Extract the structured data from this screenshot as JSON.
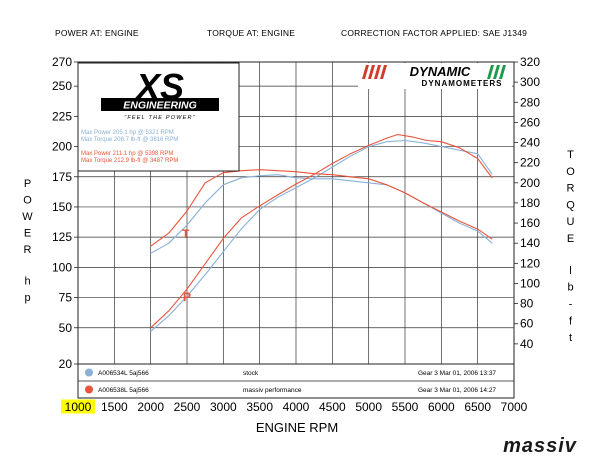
{
  "header": {
    "power_at": "POWER AT: ENGINE",
    "torque_at": "TORQUE AT: ENGINE",
    "correction": "CORRECTION FACTOR APPLIED: SAE J1349"
  },
  "logo_xs": {
    "xs": "XS",
    "engineering": "ENGINEERING",
    "tagline": "\"FEEL THE POWER\""
  },
  "logo_dynamic": {
    "name": "DYNAMIC",
    "sub": "DYNAMOMETERS"
  },
  "watermark": "massiv",
  "colors": {
    "stock": "#8ab0d6",
    "massiv": "#e8553c",
    "legend_highlight": "#ffff00"
  },
  "annotations": {
    "stock_max_power": "Max Power 205.1 hp @ 5321 RPM",
    "stock_max_torque": "Max Torque 208.7 lb-ft @ 3816 RPM",
    "massiv_max_power": "Max Power 211.1 hp @ 5398 RPM",
    "massiv_max_torque": "Max Torque 212.9 lb-ft @ 3487 RPM",
    "curve_T": "T",
    "curve_P": "P"
  },
  "legend": [
    {
      "id": "A006534L 5aj566",
      "desc": "stock",
      "date": "Gear 3 Mar 01, 2006 13:37"
    },
    {
      "id": "A006538L 5aj566",
      "desc": "massiv performance",
      "date": "Gear 3 Mar 01, 2006 14:27"
    }
  ],
  "chart_data": {
    "type": "line",
    "xlabel": "ENGINE RPM",
    "ylabel_left": "POWER hp",
    "ylabel_right": "TORQUE lb-ft",
    "xlim": [
      1000,
      7000
    ],
    "ylim_left": [
      20,
      270
    ],
    "ylim_right": [
      20,
      320
    ],
    "x_ticks": [
      1000,
      1500,
      2000,
      2500,
      3000,
      3500,
      4000,
      4500,
      5000,
      5500,
      6000,
      6500,
      7000
    ],
    "y_ticks_left": [
      20,
      50,
      75,
      100,
      125,
      150,
      175,
      200,
      225,
      250,
      270
    ],
    "y_ticks_right": [
      40,
      60,
      80,
      100,
      120,
      140,
      160,
      180,
      200,
      220,
      240,
      260,
      280,
      300,
      320
    ],
    "grid": true,
    "series": [
      {
        "name": "stock",
        "kind": "power",
        "axis": "left",
        "x": [
          2000,
          2250,
          2500,
          2750,
          3000,
          3250,
          3500,
          3750,
          4000,
          4250,
          4500,
          4750,
          5000,
          5250,
          5500,
          5750,
          6000,
          6250,
          6500,
          6700
        ],
        "y": [
          47,
          60,
          76,
          94,
          113,
          132,
          148,
          158,
          166,
          174,
          183,
          192,
          200,
          204,
          205,
          203,
          200,
          197,
          194,
          177
        ]
      },
      {
        "name": "massiv performance",
        "kind": "power",
        "axis": "left",
        "x": [
          2000,
          2250,
          2500,
          2750,
          3000,
          3250,
          3500,
          3750,
          4000,
          4250,
          4500,
          4750,
          5000,
          5250,
          5400,
          5600,
          5800,
          6000,
          6250,
          6500,
          6700
        ],
        "y": [
          50,
          64,
          82,
          103,
          124,
          141,
          151,
          160,
          169,
          177,
          186,
          194,
          201,
          207,
          210,
          208,
          205,
          204,
          199,
          190,
          174
        ]
      },
      {
        "name": "stock",
        "kind": "torque",
        "axis": "right",
        "x": [
          2000,
          2250,
          2500,
          2750,
          3000,
          3250,
          3500,
          3750,
          4000,
          4250,
          4500,
          4750,
          5000,
          5250,
          5500,
          5750,
          6000,
          6250,
          6500,
          6700
        ],
        "y": [
          130,
          140,
          158,
          180,
          198,
          205,
          207,
          208,
          205,
          204,
          204,
          202,
          200,
          198,
          190,
          180,
          170,
          160,
          152,
          140
        ]
      },
      {
        "name": "massiv performance",
        "kind": "torque",
        "axis": "right",
        "x": [
          2000,
          2250,
          2500,
          2750,
          3000,
          3250,
          3500,
          3750,
          4000,
          4250,
          4500,
          4750,
          5000,
          5250,
          5500,
          5750,
          6000,
          6250,
          6500,
          6700
        ],
        "y": [
          137,
          150,
          172,
          200,
          210,
          212,
          213,
          212,
          211,
          209,
          208,
          206,
          204,
          198,
          190,
          180,
          171,
          162,
          154,
          144
        ]
      }
    ]
  }
}
